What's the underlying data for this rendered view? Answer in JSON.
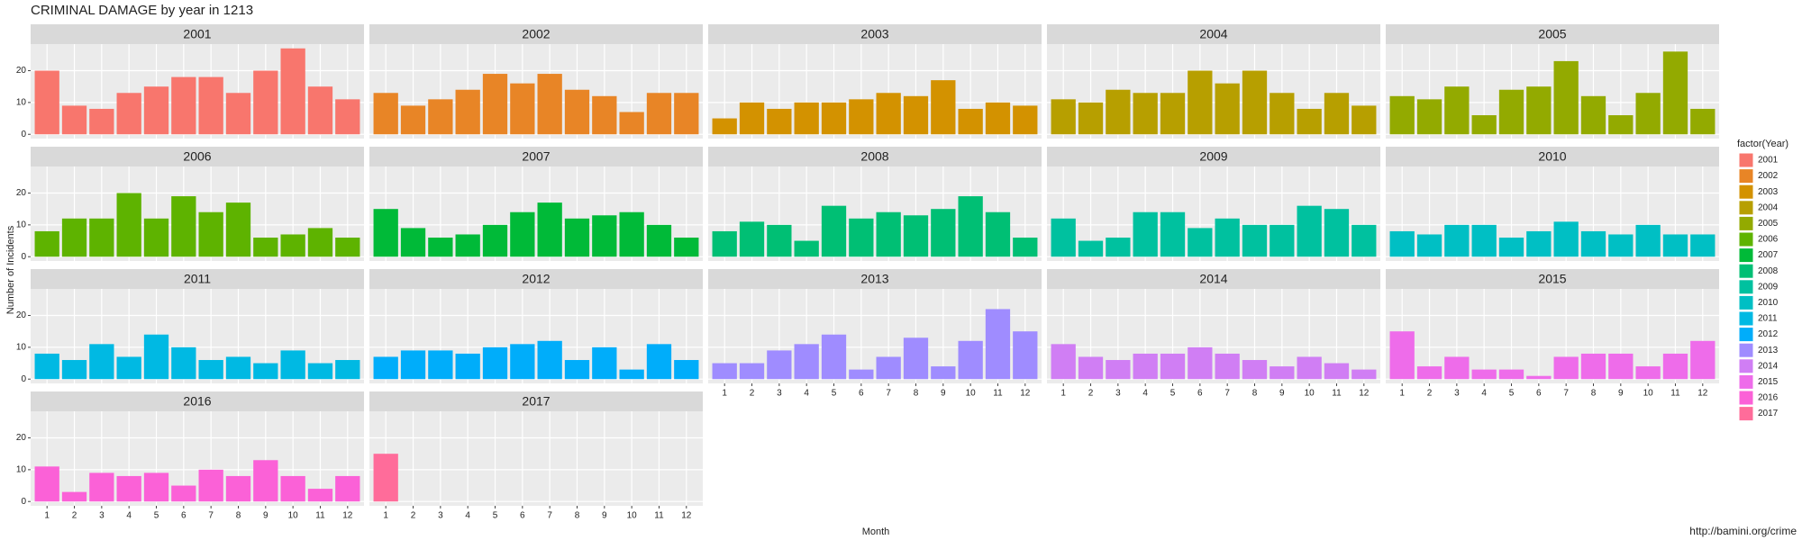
{
  "chart_data": {
    "type": "bar",
    "title": "CRIMINAL DAMAGE by year in 1213",
    "y_label": "Number of Incidents",
    "x_label": "Month",
    "legend_title": "factor(Year)",
    "caption": "http://bamini.org/crime",
    "categories": [
      "1",
      "2",
      "3",
      "4",
      "5",
      "6",
      "7",
      "8",
      "9",
      "10",
      "11",
      "12"
    ],
    "ylim": [
      -1.35,
      28.35
    ],
    "yticks": [
      0,
      10,
      20
    ],
    "grid": true,
    "legend": "right",
    "series": [
      {
        "name": "2001",
        "color": "#F8766D",
        "values": [
          20,
          9,
          8,
          13,
          15,
          18,
          18,
          13,
          20,
          27,
          15,
          11
        ]
      },
      {
        "name": "2002",
        "color": "#E88526",
        "values": [
          13,
          9,
          11,
          14,
          19,
          16,
          19,
          14,
          12,
          7,
          13,
          13
        ]
      },
      {
        "name": "2003",
        "color": "#D39200",
        "values": [
          5,
          10,
          8,
          10,
          10,
          11,
          13,
          12,
          17,
          8,
          10,
          9
        ]
      },
      {
        "name": "2004",
        "color": "#B79F00",
        "values": [
          11,
          10,
          14,
          13,
          13,
          20,
          16,
          20,
          13,
          8,
          13,
          9
        ]
      },
      {
        "name": "2005",
        "color": "#93AA00",
        "values": [
          12,
          11,
          15,
          6,
          14,
          15,
          23,
          12,
          6,
          13,
          26,
          8
        ]
      },
      {
        "name": "2006",
        "color": "#5EB300",
        "values": [
          8,
          12,
          12,
          20,
          12,
          19,
          14,
          17,
          6,
          7,
          9,
          6
        ]
      },
      {
        "name": "2007",
        "color": "#00BA38",
        "values": [
          15,
          9,
          6,
          7,
          10,
          14,
          17,
          12,
          13,
          14,
          10,
          6
        ]
      },
      {
        "name": "2008",
        "color": "#00BF74",
        "values": [
          8,
          11,
          10,
          5,
          16,
          12,
          14,
          13,
          15,
          19,
          14,
          6
        ]
      },
      {
        "name": "2009",
        "color": "#00C19F",
        "values": [
          12,
          5,
          6,
          14,
          14,
          9,
          12,
          10,
          10,
          16,
          15,
          10
        ]
      },
      {
        "name": "2010",
        "color": "#00BFC4",
        "values": [
          8,
          7,
          10,
          10,
          6,
          8,
          11,
          8,
          7,
          10,
          7,
          7
        ]
      },
      {
        "name": "2011",
        "color": "#00B9E3",
        "values": [
          8,
          6,
          11,
          7,
          14,
          10,
          6,
          7,
          5,
          9,
          5,
          6
        ]
      },
      {
        "name": "2012",
        "color": "#00ADFA",
        "values": [
          7,
          9,
          9,
          8,
          10,
          11,
          12,
          6,
          10,
          3,
          11,
          6
        ]
      },
      {
        "name": "2013",
        "color": "#9F8CFF",
        "values": [
          5,
          5,
          9,
          11,
          14,
          3,
          7,
          13,
          4,
          12,
          22,
          15
        ]
      },
      {
        "name": "2014",
        "color": "#D07EF4",
        "values": [
          11,
          7,
          6,
          8,
          8,
          10,
          8,
          6,
          4,
          7,
          5,
          3
        ]
      },
      {
        "name": "2015",
        "color": "#EE6CEA",
        "values": [
          15,
          4,
          7,
          3,
          3,
          1,
          7,
          8,
          8,
          4,
          8,
          12
        ]
      },
      {
        "name": "2016",
        "color": "#FB61D7",
        "values": [
          11,
          3,
          9,
          8,
          9,
          5,
          10,
          8,
          13,
          8,
          4,
          8
        ]
      },
      {
        "name": "2017",
        "color": "#FF6C9A",
        "values": [
          15,
          null,
          null,
          null,
          null,
          null,
          null,
          null,
          null,
          null,
          null,
          null
        ]
      }
    ]
  }
}
